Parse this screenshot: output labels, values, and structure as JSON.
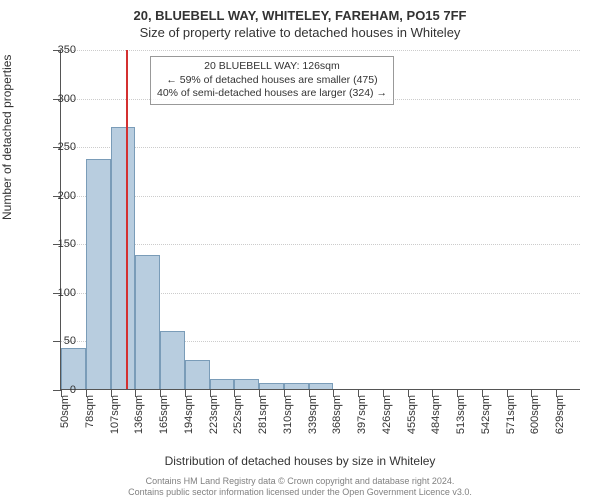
{
  "title": "20, BLUEBELL WAY, WHITELEY, FAREHAM, PO15 7FF",
  "subtitle": "Size of property relative to detached houses in Whiteley",
  "y_axis_title": "Number of detached properties",
  "x_axis_title": "Distribution of detached houses by size in Whiteley",
  "license_line1": "Contains HM Land Registry data © Crown copyright and database right 2024.",
  "license_line2": "Contains public sector information licensed under the Open Government Licence v3.0.",
  "annotation": {
    "line1": "20 BLUEBELL WAY: 126sqm",
    "line2": "← 59% of detached houses are smaller (475)",
    "line3": "40% of semi-detached houses are larger (324) →"
  },
  "chart": {
    "type": "histogram",
    "ylim": [
      0,
      350
    ],
    "ytick_step": 50,
    "background_color": "#ffffff",
    "grid_color": "#cccccc",
    "axis_color": "#555555",
    "bar_color": "#b8cddf",
    "bar_border_color": "#7a9cb8",
    "marker_color": "#d43030",
    "marker_x": 126,
    "categories": [
      "50sqm",
      "78sqm",
      "107sqm",
      "136sqm",
      "165sqm",
      "194sqm",
      "223sqm",
      "252sqm",
      "281sqm",
      "310sqm",
      "339sqm",
      "368sqm",
      "397sqm",
      "426sqm",
      "455sqm",
      "484sqm",
      "513sqm",
      "542sqm",
      "571sqm",
      "600sqm",
      "629sqm"
    ],
    "bin_start": 50,
    "bin_width": 29,
    "values": [
      42,
      237,
      270,
      138,
      60,
      30,
      10,
      10,
      6,
      6,
      6,
      0,
      0,
      0,
      0,
      0,
      0,
      0,
      0,
      0
    ]
  }
}
